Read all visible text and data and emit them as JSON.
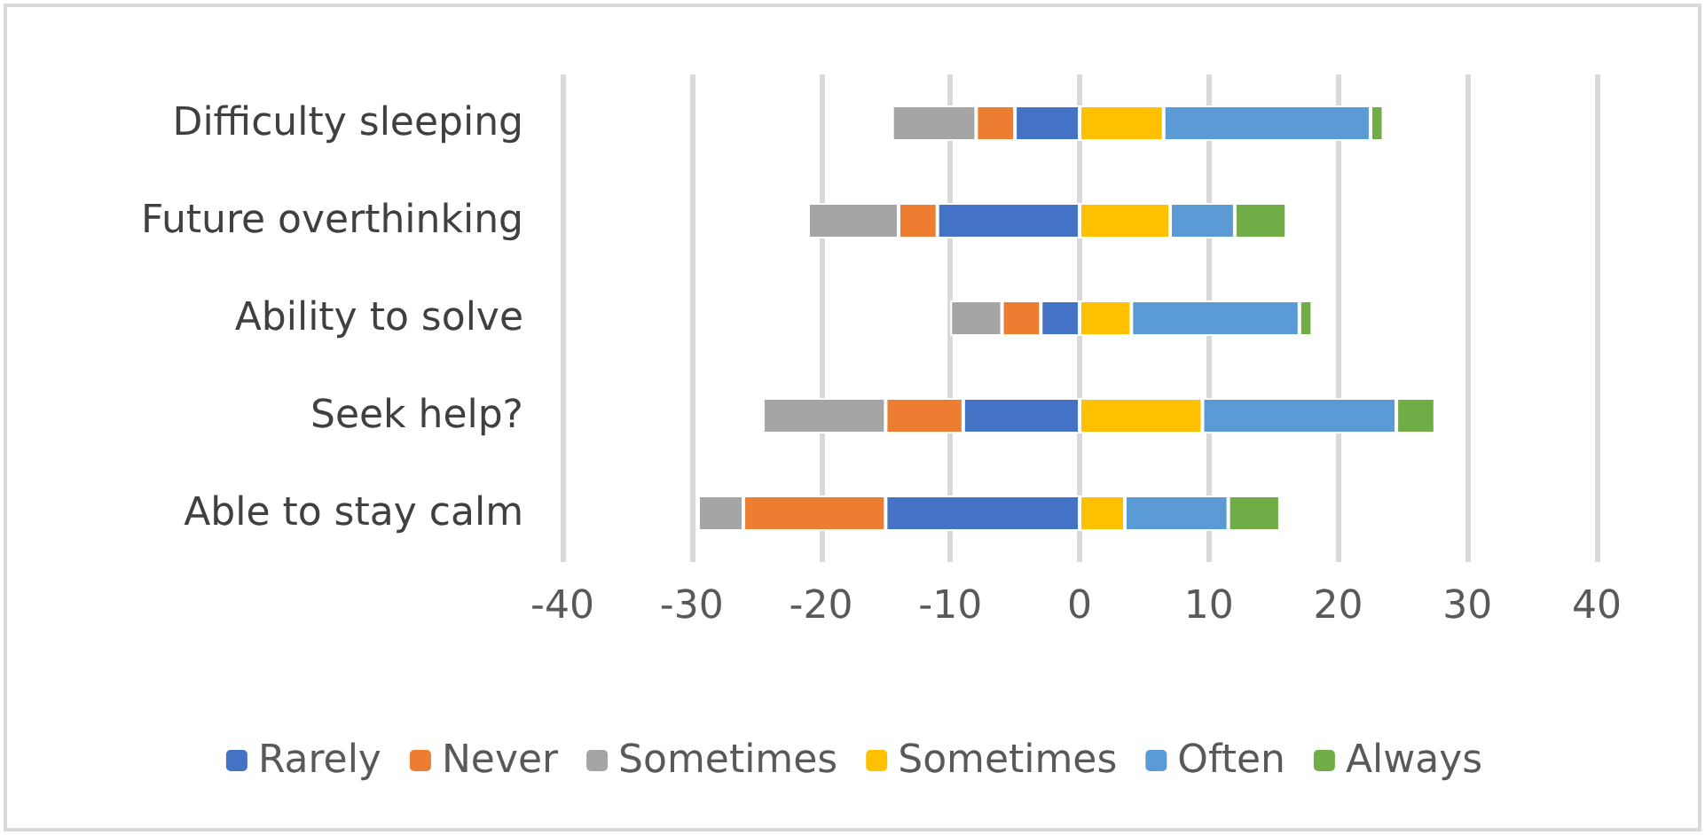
{
  "chart_data": {
    "type": "bar",
    "orientation": "horizontal",
    "stacked": true,
    "categories": [
      "Difficulty sleeping",
      "Future overthinking",
      "Ability to solve",
      "Seek help?",
      "Able to stay calm"
    ],
    "series": [
      {
        "name": "Rarely",
        "color": "#4472c4",
        "values": [
          -5,
          -11,
          -3,
          -9,
          -15
        ]
      },
      {
        "name": "Never",
        "color": "#ed7d31",
        "values": [
          -3,
          -3,
          -3,
          -6,
          -11
        ]
      },
      {
        "name": "Sometimes",
        "color": "#a5a5a5",
        "values": [
          -6.5,
          -7,
          -4,
          -9.5,
          -3.5
        ]
      },
      {
        "name": "Sometimes",
        "color": "#ffc000",
        "values": [
          6.5,
          7,
          4,
          9.5,
          3.5
        ]
      },
      {
        "name": "Often",
        "color": "#5b9bd5",
        "values": [
          16,
          5,
          13,
          15,
          8
        ]
      },
      {
        "name": "Always",
        "color": "#70ad47",
        "values": [
          1,
          4,
          1,
          3,
          4
        ]
      }
    ],
    "xlim": [
      -40,
      40
    ],
    "xticks": [
      -40,
      -30,
      -20,
      -10,
      0,
      10,
      20,
      30,
      40
    ],
    "grid": "x",
    "legend": "bottom"
  }
}
